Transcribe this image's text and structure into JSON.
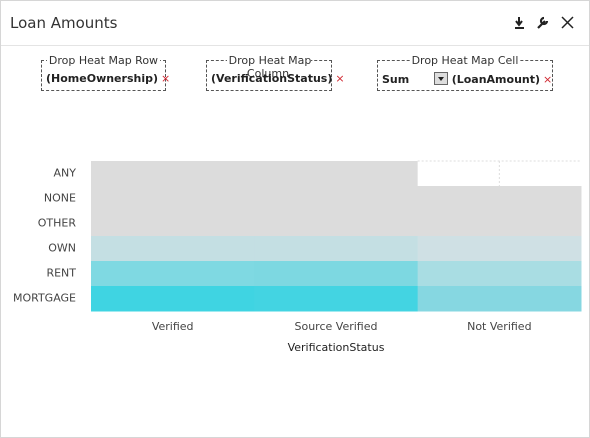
{
  "title": "Loan Amounts",
  "drop_zones": [
    {
      "label": "Drop Heat Map Row",
      "field": "(HomeOwnership)"
    },
    {
      "label": "Drop Heat Map Column",
      "field": "(VerificationStatus)"
    },
    {
      "label": "Drop Heat Map Cell",
      "aggregate": "Sum",
      "field": "(LoanAmount)"
    }
  ],
  "heatmap": {
    "rows": [
      "ANY",
      "NONE",
      "OTHER",
      "OWN",
      "RENT",
      "MORTGAGE"
    ],
    "columns": [
      "Verified",
      "Source Verified",
      "Not Verified"
    ],
    "x_label": "VerificationStatus",
    "cell_colors": [
      [
        "#dcdcdc",
        "#dcdcdc",
        null
      ],
      [
        "#dcdcdc",
        "#dcdcdc",
        "#dcdcdc"
      ],
      [
        "#dcdcdc",
        "#dcdcdc",
        "#dcdcdc"
      ],
      [
        "#c4dfe3",
        "#c4dfe3",
        "#cfe0e4"
      ],
      [
        "#7fd9e2",
        "#7dd8e1",
        "#a9dde3"
      ],
      [
        "#3fd4e2",
        "#43d4e2",
        "#86d7e1"
      ]
    ]
  }
}
